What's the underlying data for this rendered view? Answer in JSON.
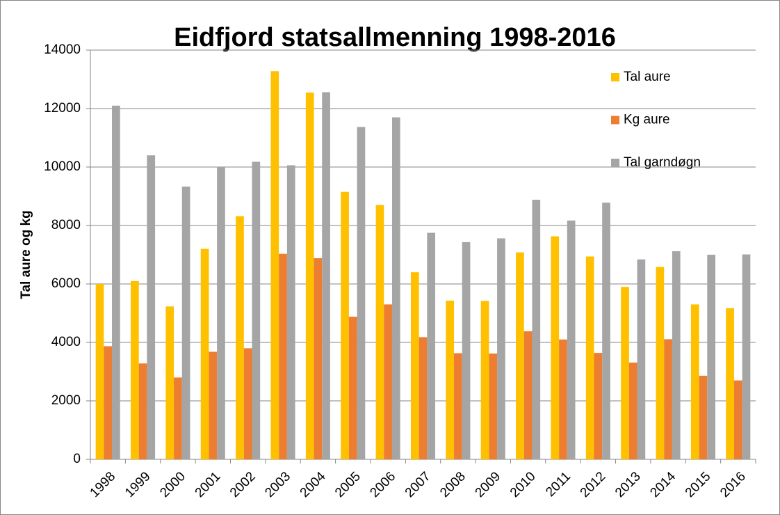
{
  "chart_data": {
    "type": "bar",
    "title": "Eidfjord statsallmenning 1998-2016",
    "y_label": "Tal aure og kg",
    "categories": [
      "1998",
      "1999",
      "2000",
      "2001",
      "2002",
      "2003",
      "2004",
      "2005",
      "2006",
      "2007",
      "2008",
      "2009",
      "2010",
      "2011",
      "2012",
      "2013",
      "2014",
      "2015",
      "2016"
    ],
    "series": [
      {
        "name": "Tal aure",
        "color": "#ffc000",
        "values": [
          6000,
          6100,
          5230,
          7200,
          8320,
          13280,
          12550,
          9150,
          8700,
          6400,
          5430,
          5420,
          7080,
          7630,
          6940,
          5900,
          6580,
          5300,
          5170
        ]
      },
      {
        "name": "Kg aure",
        "color": "#ed7d31",
        "values": [
          3870,
          3280,
          2800,
          3680,
          3800,
          7030,
          6880,
          4880,
          5300,
          4180,
          3630,
          3620,
          4380,
          4100,
          3640,
          3310,
          4110,
          2860,
          2700
        ]
      },
      {
        "name": "Tal garndøgn",
        "color": "#a5a5a5",
        "values": [
          12100,
          10400,
          9330,
          10000,
          10180,
          10060,
          12560,
          11370,
          11700,
          7750,
          7430,
          7560,
          8880,
          8170,
          8780,
          6840,
          7120,
          7000,
          7010
        ]
      }
    ],
    "ylim": [
      0,
      14000
    ],
    "yticks": [
      0,
      2000,
      4000,
      6000,
      8000,
      10000,
      12000,
      14000
    ],
    "grid": true,
    "legend": "right"
  }
}
